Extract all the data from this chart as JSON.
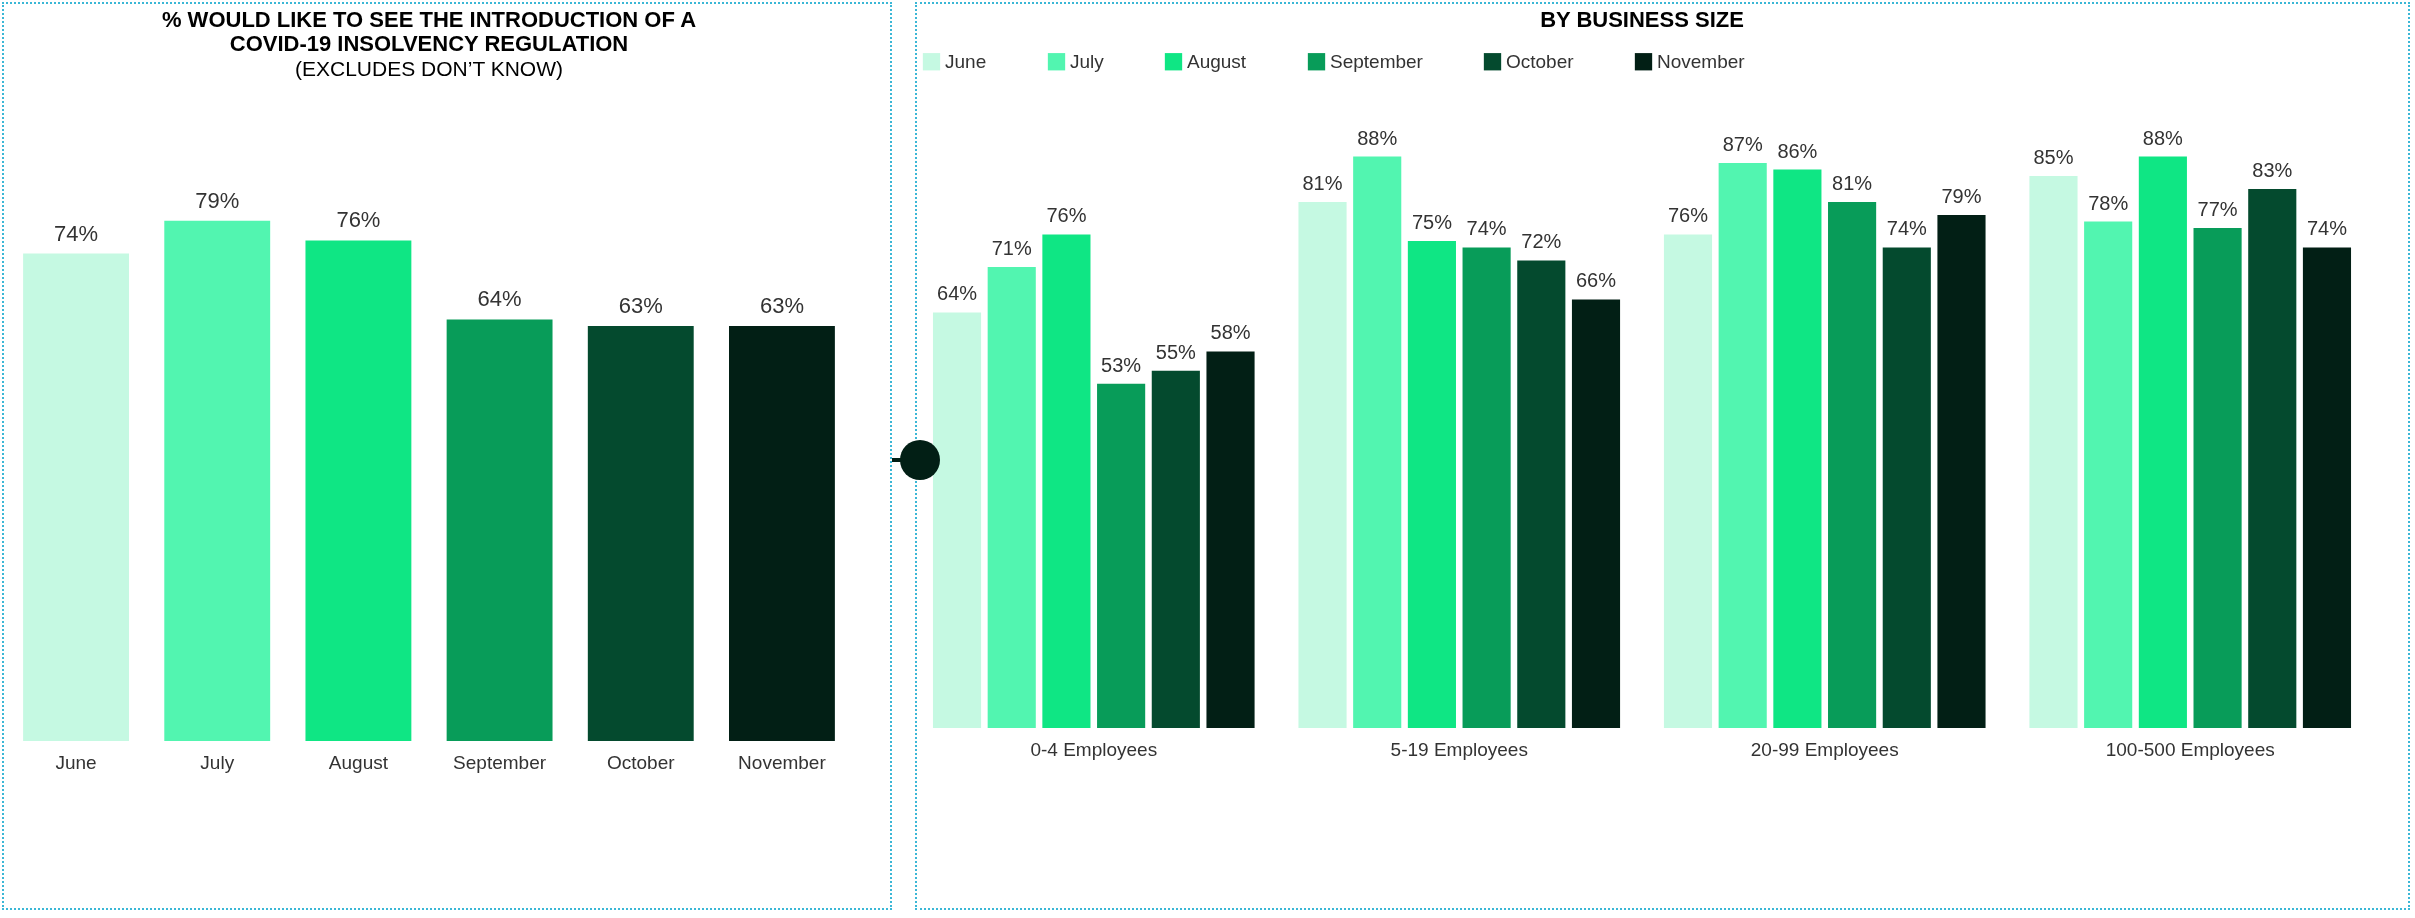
{
  "chart_data": [
    {
      "type": "bar",
      "title": "% WOULD LIKE TO SEE THE INTRODUCTION OF A COVID-19 INSOLVENCY REGULATION",
      "subtitle": "(EXCLUDES DON’T KNOW)",
      "categories": [
        "June",
        "July",
        "August",
        "September",
        "October",
        "November"
      ],
      "values": [
        74,
        79,
        76,
        64,
        63,
        63
      ],
      "colors": [
        "#c5f9e2",
        "#52f5b0",
        "#0fe684",
        "#089c59",
        "#044a2e",
        "#021f15"
      ],
      "data_labels": true,
      "value_labels": [
        "74%",
        "79%",
        "76%",
        "64%",
        "63%",
        "63%"
      ]
    },
    {
      "type": "bar",
      "title": "BY BUSINESS SIZE",
      "categories": [
        "0-4 Employees",
        "5-19 Employees",
        "20-99 Employees",
        "100-500 Employees"
      ],
      "legend": "top",
      "data_labels": true,
      "series": [
        {
          "name": "June",
          "color": "#c5f9e2",
          "values": [
            64,
            81,
            76,
            85
          ],
          "value_labels": [
            "64%",
            "81%",
            "76%",
            "85%"
          ]
        },
        {
          "name": "July",
          "color": "#52f5b0",
          "values": [
            71,
            88,
            87,
            78
          ],
          "value_labels": [
            "71%",
            "88%",
            "87%",
            "78%"
          ]
        },
        {
          "name": "August",
          "color": "#0fe684",
          "values": [
            76,
            75,
            86,
            88
          ],
          "value_labels": [
            "76%",
            "75%",
            "86%",
            "88%"
          ]
        },
        {
          "name": "September",
          "color": "#089c59",
          "values": [
            53,
            74,
            81,
            77
          ],
          "value_labels": [
            "53%",
            "74%",
            "81%",
            "77%"
          ]
        },
        {
          "name": "October",
          "color": "#044a2e",
          "values": [
            55,
            72,
            74,
            83
          ],
          "value_labels": [
            "55%",
            "72%",
            "74%",
            "83%"
          ]
        },
        {
          "name": "November",
          "color": "#021f15",
          "values": [
            58,
            66,
            79,
            74
          ],
          "value_labels": [
            "58%",
            "66%",
            "79%",
            "74%"
          ]
        }
      ]
    }
  ]
}
